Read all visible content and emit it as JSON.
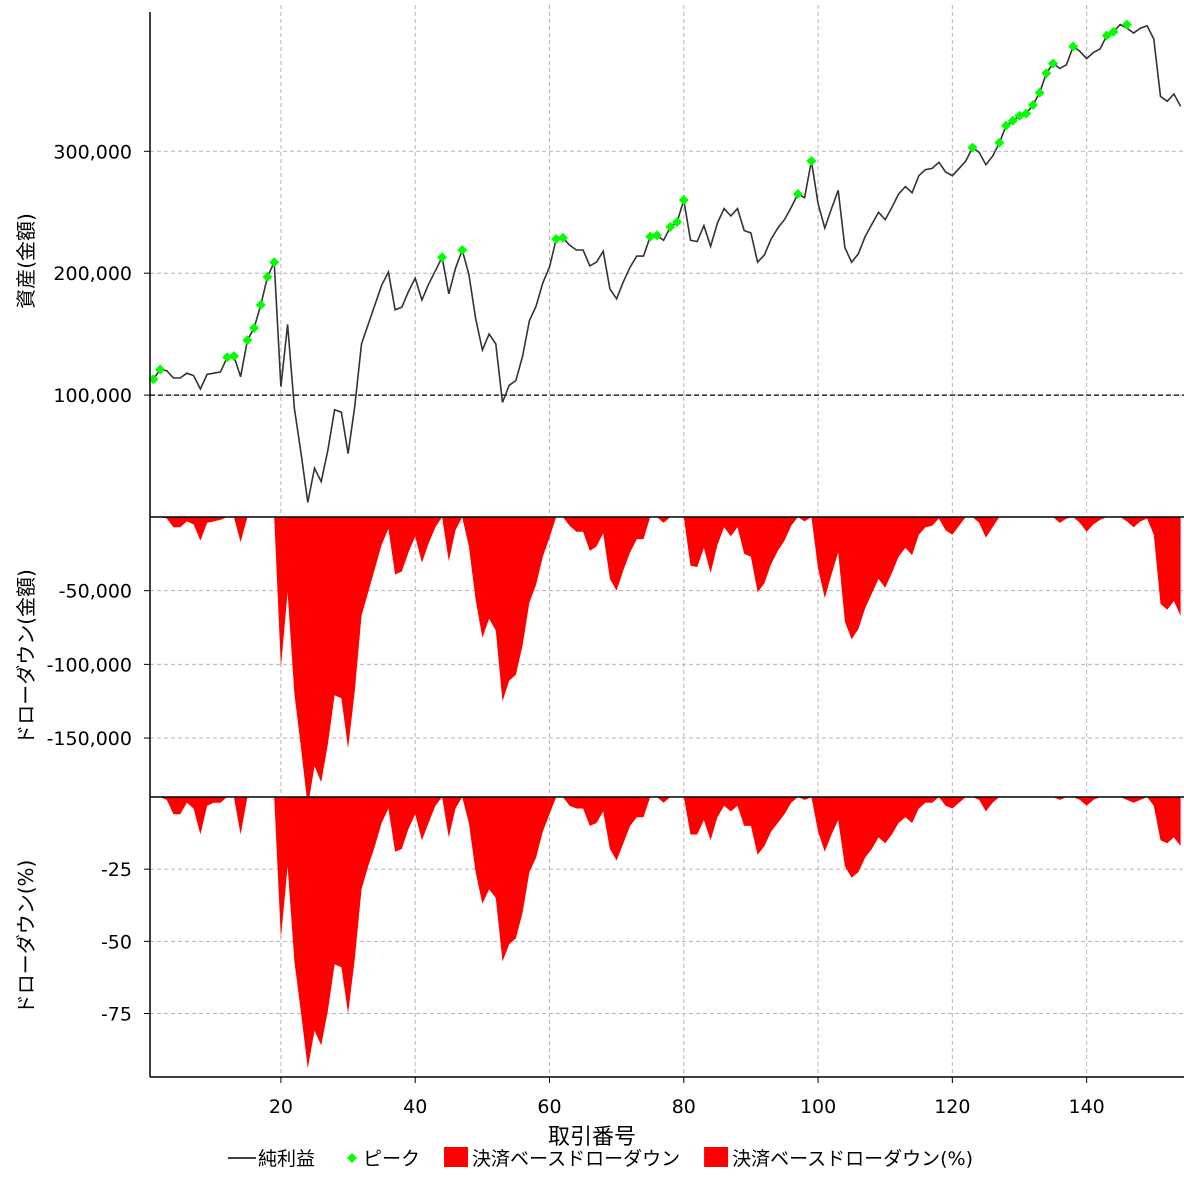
{
  "chart_data": [
    {
      "type": "line",
      "ylabel": "資産(金額)",
      "ylim": [
        0,
        420000
      ],
      "yticks": [
        100000,
        200000,
        300000
      ],
      "ytick_labels": [
        "100,000",
        "200,000",
        "300,000"
      ],
      "baseline": 100000,
      "x": [
        1,
        2,
        3,
        4,
        5,
        6,
        7,
        8,
        9,
        10,
        11,
        12,
        13,
        14,
        15,
        16,
        17,
        18,
        19,
        20,
        21,
        22,
        23,
        24,
        25,
        26,
        27,
        28,
        29,
        30,
        31,
        32,
        33,
        34,
        35,
        36,
        37,
        38,
        39,
        40,
        41,
        42,
        43,
        44,
        45,
        46,
        47,
        48,
        49,
        50,
        51,
        52,
        53,
        54,
        55,
        56,
        57,
        58,
        59,
        60,
        61,
        62,
        63,
        64,
        65,
        66,
        67,
        68,
        69,
        70,
        71,
        72,
        73,
        74,
        75,
        76,
        77,
        78,
        79,
        80,
        81,
        82,
        83,
        84,
        85,
        86,
        87,
        88,
        89,
        90,
        91,
        92,
        93,
        94,
        95,
        96,
        97,
        98,
        99,
        100,
        101,
        102,
        103,
        104,
        105,
        106,
        107,
        108,
        109,
        110,
        111,
        112,
        113,
        114,
        115,
        116,
        117,
        118,
        119,
        120,
        121,
        122,
        123,
        124,
        125,
        126,
        127,
        128,
        129,
        130,
        131,
        132,
        133,
        134,
        135,
        136,
        137,
        138,
        139,
        140,
        141,
        142,
        143,
        144,
        145,
        146,
        147,
        148,
        149,
        150,
        151,
        152,
        153,
        154
      ],
      "series": [
        {
          "name": "純利益",
          "values": [
            113000,
            121000,
            120000,
            114000,
            114000,
            118000,
            116000,
            105000,
            117000,
            118000,
            119000,
            131000,
            132000,
            115000,
            145000,
            155000,
            174000,
            197000,
            209000,
            107000,
            158000,
            89000,
            52000,
            12000,
            40000,
            29000,
            55000,
            88000,
            86000,
            52000,
            91000,
            142000,
            158000,
            174000,
            190000,
            201000,
            170000,
            172000,
            185000,
            196000,
            178000,
            191000,
            202000,
            213000,
            183000,
            204000,
            219000,
            199000,
            163000,
            137000,
            150000,
            142000,
            94000,
            108000,
            112000,
            132000,
            161000,
            173000,
            192000,
            205000,
            228000,
            229000,
            223000,
            219000,
            219000,
            206000,
            209000,
            218000,
            187000,
            179000,
            193000,
            205000,
            214000,
            214000,
            230000,
            231000,
            227000,
            238000,
            242000,
            260000,
            227000,
            226000,
            239000,
            222000,
            241000,
            253000,
            247000,
            253000,
            235000,
            233000,
            209000,
            215000,
            228000,
            237000,
            244000,
            254000,
            265000,
            262000,
            292000,
            257000,
            237000,
            253000,
            268000,
            221000,
            209000,
            216000,
            230000,
            240000,
            250000,
            244000,
            254000,
            265000,
            271000,
            266000,
            280000,
            285000,
            286000,
            291000,
            283000,
            280000,
            286000,
            292000,
            303000,
            299000,
            289000,
            296000,
            307000,
            321000,
            325000,
            329000,
            331000,
            338000,
            348000,
            364000,
            372000,
            368000,
            371000,
            386000,
            382000,
            376000,
            381000,
            384000,
            395000,
            398000,
            404000,
            401000,
            397000,
            401000,
            403000,
            392000,
            345000,
            341000,
            347000,
            337000
          ]
        },
        {
          "name": "ピーク",
          "color": "#00ff00",
          "points": [
            [
              1,
              113000
            ],
            [
              2,
              121000
            ],
            [
              12,
              131000
            ],
            [
              13,
              132000
            ],
            [
              15,
              145000
            ],
            [
              16,
              155000
            ],
            [
              17,
              174000
            ],
            [
              18,
              197000
            ],
            [
              19,
              209000
            ],
            [
              44,
              213000
            ],
            [
              47,
              219000
            ],
            [
              61,
              228000
            ],
            [
              62,
              229000
            ],
            [
              75,
              230000
            ],
            [
              76,
              231000
            ],
            [
              78,
              238000
            ],
            [
              79,
              242000
            ],
            [
              80,
              260000
            ],
            [
              97,
              265000
            ],
            [
              99,
              292000
            ],
            [
              123,
              303000
            ],
            [
              127,
              307000
            ],
            [
              128,
              321000
            ],
            [
              129,
              325000
            ],
            [
              130,
              329000
            ],
            [
              131,
              331000
            ],
            [
              132,
              338000
            ],
            [
              133,
              348000
            ],
            [
              134,
              364000
            ],
            [
              135,
              372000
            ],
            [
              138,
              386000
            ],
            [
              143,
              395000
            ],
            [
              144,
              398000
            ],
            [
              146,
              404000
            ]
          ]
        }
      ]
    },
    {
      "type": "area",
      "ylabel": "ドローダウン(金額)",
      "ylim": [
        -190000,
        0
      ],
      "yticks": [
        -50000,
        -100000,
        -150000
      ],
      "ytick_labels": [
        "-50,000",
        "-100,000",
        "-150,000"
      ],
      "series": [
        {
          "name": "決済ベースドローダウン",
          "color": "#ff0000",
          "values": [
            0,
            0,
            -1000,
            -7000,
            -7000,
            -3000,
            -5000,
            -16000,
            -4000,
            -3000,
            -2000,
            0,
            0,
            -17000,
            0,
            0,
            0,
            0,
            0,
            -102000,
            -51000,
            -120000,
            -157000,
            -197000,
            -169000,
            -180000,
            -154000,
            -121000,
            -123000,
            -157000,
            -118000,
            -67000,
            -51000,
            -35000,
            -19000,
            -8000,
            -39000,
            -37000,
            -24000,
            -13000,
            -31000,
            -18000,
            -7000,
            0,
            -30000,
            -9000,
            0,
            -20000,
            -56000,
            -82000,
            -69000,
            -77000,
            -125000,
            -111000,
            -107000,
            -87000,
            -58000,
            -46000,
            -27000,
            -14000,
            0,
            0,
            -6000,
            -10000,
            -10000,
            -23000,
            -20000,
            -11000,
            -42000,
            -50000,
            -36000,
            -24000,
            -15000,
            -15000,
            0,
            0,
            -4000,
            0,
            0,
            0,
            -33000,
            -34000,
            -21000,
            -38000,
            -19000,
            -7000,
            -13000,
            -7000,
            -25000,
            -27000,
            -51000,
            -45000,
            -32000,
            -23000,
            -16000,
            -6000,
            0,
            -3000,
            0,
            -35000,
            -55000,
            -39000,
            -24000,
            -71000,
            -83000,
            -76000,
            -62000,
            -52000,
            -42000,
            -48000,
            -38000,
            -27000,
            -21000,
            -26000,
            -12000,
            -7000,
            -6000,
            -1000,
            -9000,
            -12000,
            -6000,
            0,
            0,
            -4000,
            -14000,
            -7000,
            0,
            0,
            0,
            0,
            0,
            0,
            0,
            0,
            0,
            -4000,
            -1000,
            0,
            -4000,
            -10000,
            -5000,
            -2000,
            0,
            0,
            0,
            -3000,
            -7000,
            -3000,
            -1000,
            -12000,
            -59000,
            -63000,
            -57000,
            -67000
          ]
        }
      ]
    },
    {
      "type": "area",
      "ylabel": "ドローダウン(%)",
      "ylim": [
        -97,
        0
      ],
      "yticks": [
        -25,
        -50,
        -75
      ],
      "ytick_labels": [
        "-25",
        "-50",
        "-75"
      ],
      "series": [
        {
          "name": "決済ベースドローダウン(%)",
          "color": "#ff0000",
          "values": [
            0,
            0,
            -1,
            -6,
            -6,
            -2,
            -4,
            -13,
            -3,
            -2,
            -2,
            0,
            0,
            -13,
            0,
            0,
            0,
            0,
            0,
            -49,
            -24,
            -57,
            -75,
            -94,
            -81,
            -86,
            -74,
            -58,
            -59,
            -75,
            -56,
            -32,
            -24,
            -17,
            -9,
            -4,
            -19,
            -18,
            -11,
            -6,
            -15,
            -9,
            -3,
            0,
            -14,
            -4,
            0,
            -9,
            -26,
            -37,
            -32,
            -35,
            -57,
            -51,
            -49,
            -40,
            -26,
            -21,
            -12,
            -6,
            0,
            0,
            -3,
            -4,
            -4,
            -10,
            -9,
            -5,
            -18,
            -22,
            -16,
            -10,
            -7,
            -7,
            0,
            0,
            -2,
            0,
            0,
            0,
            -13,
            -13,
            -8,
            -15,
            -7,
            -3,
            -5,
            -3,
            -10,
            -10,
            -20,
            -17,
            -12,
            -9,
            -6,
            -2,
            0,
            -1,
            0,
            -12,
            -19,
            -13,
            -8,
            -24,
            -28,
            -26,
            -21,
            -18,
            -14,
            -16,
            -13,
            -9,
            -7,
            -9,
            -4,
            -2,
            -2,
            0,
            -3,
            -4,
            -2,
            0,
            0,
            -1,
            -5,
            -2,
            0,
            0,
            0,
            0,
            0,
            0,
            0,
            0,
            0,
            -1,
            0,
            0,
            -1,
            -3,
            -1,
            0,
            0,
            0,
            0,
            -1,
            -2,
            -1,
            0,
            -3,
            -15,
            -16,
            -14,
            -17
          ]
        }
      ]
    }
  ],
  "x_axis": {
    "xlabel": "取引番号",
    "xlim": [
      0.5,
      154.5
    ],
    "ticks": [
      20,
      40,
      60,
      80,
      100,
      120,
      140
    ],
    "tick_labels": [
      "20",
      "40",
      "60",
      "80",
      "100",
      "120",
      "140"
    ]
  },
  "grid": true,
  "legend": {
    "placement": "bottom-center",
    "items": [
      {
        "label": "純利益",
        "marker": "line",
        "color": "#000000"
      },
      {
        "label": "ピーク",
        "marker": "diamond",
        "color": "#00ff00"
      },
      {
        "label": "決済ベースドローダウン",
        "marker": "box",
        "color": "#ff0000"
      },
      {
        "label": "決済ベースドローダウン(%)",
        "marker": "box",
        "color": "#ff0000"
      }
    ]
  }
}
